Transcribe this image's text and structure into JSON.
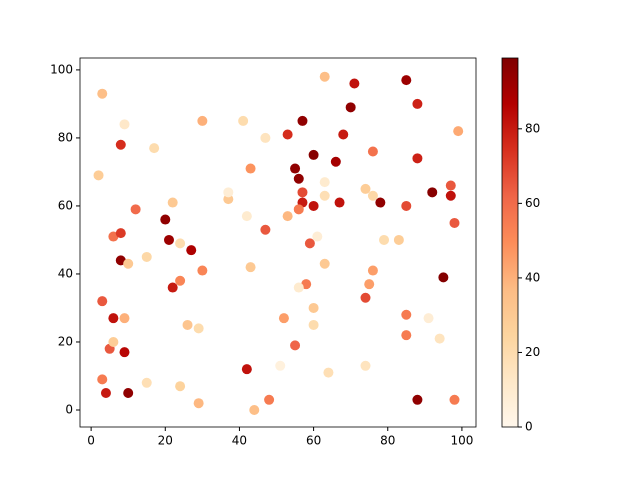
{
  "chart_data": {
    "type": "scatter",
    "colormap": "OrRd",
    "x": [
      3,
      2,
      9,
      8,
      17,
      12,
      6,
      8,
      8,
      10,
      15,
      3,
      6,
      9,
      5,
      6,
      9,
      3,
      4,
      10,
      15,
      20,
      21,
      22,
      24,
      27,
      22,
      24,
      30,
      26,
      29,
      24,
      29,
      30,
      41,
      47,
      43,
      37,
      37,
      42,
      47,
      43,
      42,
      44,
      48,
      51,
      53,
      57,
      60,
      55,
      56,
      57,
      57,
      56,
      53,
      60,
      59,
      61,
      58,
      56,
      52,
      55,
      60,
      60,
      63,
      63,
      63,
      63,
      66,
      68,
      67,
      70,
      71,
      64,
      74,
      76,
      76,
      78,
      79,
      75,
      76,
      74,
      74,
      83,
      85,
      88,
      88,
      85,
      85,
      85,
      92,
      91,
      94,
      88,
      95,
      97,
      97,
      98,
      98,
      99
    ],
    "values": [
      93,
      69,
      84,
      78,
      77,
      59,
      51,
      52,
      44,
      43,
      45,
      32,
      27,
      27,
      18,
      20,
      17,
      9,
      5,
      5,
      8,
      56,
      50,
      61,
      49,
      47,
      36,
      38,
      41,
      25,
      24,
      7,
      2,
      85,
      85,
      80,
      71,
      62,
      64,
      57,
      53,
      42,
      12,
      0,
      3,
      13,
      81,
      85,
      75,
      71,
      68,
      64,
      61,
      59,
      57,
      60,
      49,
      51,
      37,
      36,
      27,
      19,
      30,
      25,
      43,
      98,
      67,
      63,
      73,
      81,
      61,
      89,
      96,
      11,
      65,
      76,
      63,
      61,
      50,
      37,
      41,
      33,
      13,
      50,
      97,
      90,
      74,
      60,
      28,
      22,
      64,
      27,
      21,
      3,
      39,
      66,
      63,
      55,
      3,
      82
    ],
    "color_values": [
      35,
      28,
      12,
      75,
      20,
      60,
      58,
      72,
      95,
      30,
      22,
      65,
      82,
      40,
      65,
      28,
      85,
      55,
      80,
      95,
      18,
      95,
      92,
      30,
      20,
      88,
      80,
      52,
      52,
      32,
      20,
      25,
      38,
      40,
      20,
      15,
      48,
      30,
      8,
      10,
      65,
      30,
      82,
      35,
      55,
      5,
      75,
      95,
      97,
      95,
      95,
      68,
      80,
      55,
      38,
      82,
      65,
      8,
      55,
      10,
      45,
      62,
      30,
      20,
      30,
      35,
      10,
      18,
      90,
      80,
      82,
      95,
      82,
      18,
      28,
      58,
      22,
      95,
      20,
      45,
      45,
      68,
      15,
      28,
      92,
      78,
      78,
      68,
      55,
      55,
      97,
      8,
      15,
      95,
      98,
      65,
      82,
      65,
      55,
      42
    ],
    "xlim": [
      -3,
      103.8
    ],
    "ylim": [
      -5,
      103.5
    ],
    "xticks": [
      0,
      20,
      40,
      60,
      80,
      100
    ],
    "yticks": [
      0,
      20,
      40,
      60,
      80,
      100
    ],
    "clim": [
      0,
      99
    ],
    "colorbar_ticks": [
      0,
      20,
      40,
      60,
      80
    ]
  }
}
